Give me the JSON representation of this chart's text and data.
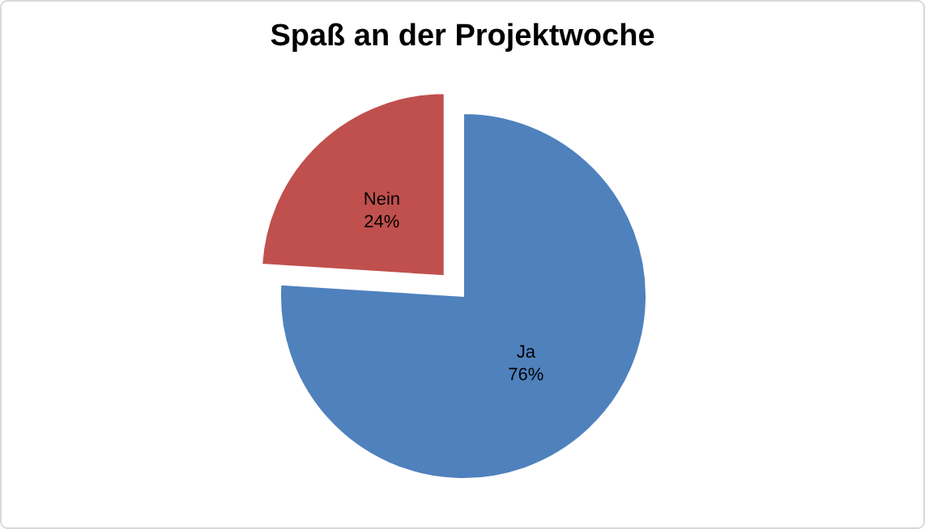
{
  "chart_data": {
    "type": "pie",
    "title": "Spaß an der Projektwoche",
    "categories": [
      "Ja",
      "Nein"
    ],
    "values": [
      76,
      24
    ],
    "colors": [
      "#4f81bd",
      "#c0504d"
    ],
    "value_labels": [
      "76%",
      "24%"
    ],
    "legend": false
  }
}
